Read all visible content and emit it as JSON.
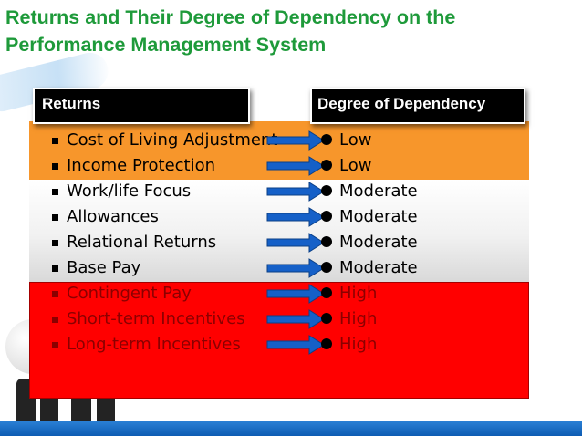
{
  "slide": {
    "title_line1": "Returns and Their Degree of Dependency on the",
    "title_line2": "Performance Management System"
  },
  "table": {
    "headers": {
      "returns": "Returns",
      "degree": "Degree of Dependency"
    },
    "rows": [
      {
        "return": "Cost of Living Adjustment",
        "degree": "Low"
      },
      {
        "return": "Income Protection",
        "degree": "Low"
      },
      {
        "return": "Work/life Focus",
        "degree": "Moderate"
      },
      {
        "return": "Allowances",
        "degree": "Moderate"
      },
      {
        "return": "Relational Returns",
        "degree": "Moderate"
      },
      {
        "return": "Base Pay",
        "degree": "Moderate"
      },
      {
        "return": "Contingent Pay",
        "degree": "High"
      },
      {
        "return": "Short-term Incentives",
        "degree": "High"
      },
      {
        "return": "Long-term Incentives",
        "degree": "High"
      }
    ]
  },
  "colors": {
    "title": "#1e9a3a",
    "low_band": "#f7962b",
    "moderate_band": "#ececec",
    "high_band": "#ff0000",
    "high_text": "#8b0000",
    "arrow": "#1560c8",
    "footer": "#1565c0"
  },
  "icons": {
    "row_bullet": "square-bullet-icon",
    "row_arrow": "arrow-right-icon",
    "level_marker": "circle-bullet-icon"
  }
}
